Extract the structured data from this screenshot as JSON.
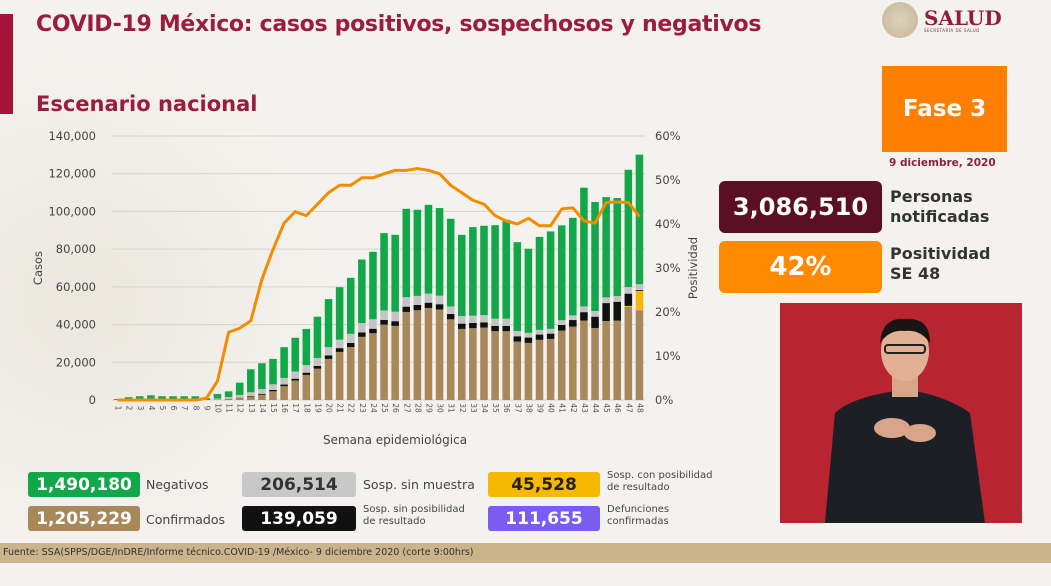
{
  "header": {
    "title": "COVID-19 México: casos positivos, sospechosos y negativos",
    "subtitle": "Escenario nacional",
    "logo_text": "SALUD",
    "logo_subtext": "SECRETARÍA DE SALUD"
  },
  "side": {
    "phase": "Fase 3",
    "date": "9 diciembre, 2020",
    "notified_value": "3,086,510",
    "notified_label_1": "Personas",
    "notified_label_2": "notificadas",
    "positivity_value": "42%",
    "positivity_label_1": "Positividad",
    "positivity_label_2": "SE 48"
  },
  "legend": [
    {
      "value": "1,490,180",
      "label": "Negativos",
      "color": "#12a84a"
    },
    {
      "value": "1,205,229",
      "label": "Confirmados",
      "color": "#a8875a"
    },
    {
      "value": "206,514",
      "label": "Sosp. sin muestra",
      "color": "#c8c8c8"
    },
    {
      "value": "139,059",
      "label_1": "Sosp. sin posibilidad",
      "label_2": "de resultado",
      "color": "#111111"
    },
    {
      "value": "45,528",
      "label_1": "Sosp. con posibilidad",
      "label_2": "de resultado",
      "color": "#f7b800"
    },
    {
      "value": "111,655",
      "label_1": "Defunciones",
      "label_2": "confirmadas",
      "color": "#7b5cf0"
    }
  ],
  "footer": "Fuente: SSA(SPPS/DGE/InDRE/Informe técnico.COVID-19 /México- 9 diciembre 2020 (corte 9:00hrs)",
  "chart_data": {
    "type": "bar",
    "stacked": true,
    "xlabel": "Semana epidemiológica",
    "ylabel": "Casos",
    "y2label": "Positividad",
    "ylim": [
      0,
      140000
    ],
    "y2lim": [
      0,
      60
    ],
    "yticks": [
      "0",
      "20,000",
      "40,000",
      "60,000",
      "80,000",
      "100,000",
      "120,000",
      "140,000"
    ],
    "y2ticks": [
      "0%",
      "10%",
      "20%",
      "30%",
      "40%",
      "50%",
      "60%"
    ],
    "grid": true,
    "categories": [
      1,
      2,
      3,
      4,
      5,
      6,
      7,
      8,
      9,
      10,
      11,
      12,
      13,
      14,
      15,
      16,
      17,
      18,
      19,
      20,
      21,
      22,
      23,
      24,
      25,
      26,
      27,
      28,
      29,
      30,
      31,
      32,
      33,
      34,
      35,
      36,
      37,
      38,
      39,
      40,
      41,
      42,
      43,
      44,
      45,
      46,
      47,
      48
    ],
    "series": [
      {
        "key": "confirmados",
        "color": "#a8875a",
        "values": [
          0,
          0,
          0,
          0,
          0,
          0,
          0,
          0,
          0,
          300,
          500,
          1000,
          1800,
          2800,
          4600,
          7300,
          10300,
          13300,
          16600,
          21800,
          25500,
          28100,
          33500,
          35400,
          40000,
          39300,
          46700,
          47600,
          48800,
          48000,
          42800,
          37700,
          38100,
          38400,
          36500,
          36500,
          31000,
          30300,
          31900,
          32400,
          36800,
          38900,
          42100,
          38200,
          41900,
          42100,
          49400,
          47600
        ]
      },
      {
        "key": "sosp_con_posibilidad",
        "color": "#f7b800",
        "values": [
          0,
          0,
          0,
          0,
          0,
          0,
          0,
          0,
          0,
          0,
          0,
          0,
          0,
          0,
          0,
          0,
          0,
          0,
          0,
          0,
          0,
          0,
          0,
          0,
          0,
          0,
          0,
          0,
          0,
          0,
          0,
          0,
          0,
          0,
          0,
          0,
          0,
          0,
          0,
          0,
          0,
          0,
          0,
          0,
          0,
          0,
          500,
          10300
        ]
      },
      {
        "key": "sosp_sin_posibilidad",
        "color": "#111111",
        "values": [
          0,
          0,
          0,
          0,
          0,
          0,
          0,
          0,
          0,
          0,
          100,
          200,
          300,
          500,
          700,
          900,
          1000,
          1200,
          1500,
          1800,
          2000,
          2200,
          2300,
          2400,
          2500,
          2500,
          2800,
          2800,
          2800,
          2800,
          2800,
          2800,
          2800,
          2800,
          2800,
          2800,
          2800,
          2800,
          2800,
          2800,
          3000,
          3500,
          4500,
          6000,
          9500,
          10000,
          6500,
          500
        ]
      },
      {
        "key": "sosp_sin_muestra",
        "color": "#c4c4c4",
        "values": [
          0,
          0,
          0,
          0,
          0,
          0,
          0,
          0,
          0,
          500,
          1000,
          1500,
          2000,
          2500,
          3000,
          3500,
          3800,
          4000,
          4200,
          4500,
          4500,
          4800,
          5000,
          5000,
          5000,
          5000,
          5000,
          4800,
          4800,
          4500,
          4000,
          4000,
          3800,
          3800,
          3800,
          3800,
          2800,
          2500,
          2500,
          2500,
          2500,
          2500,
          3000,
          3000,
          3000,
          3000,
          3500,
          3000
        ]
      },
      {
        "key": "negativos",
        "color": "#12a84a",
        "values": [
          500,
          1500,
          2000,
          2500,
          2000,
          2000,
          2000,
          2000,
          1000,
          2400,
          3000,
          6500,
          12200,
          13700,
          13500,
          16300,
          17900,
          19200,
          21900,
          25400,
          27800,
          29700,
          33700,
          35800,
          41000,
          40800,
          46900,
          45700,
          47100,
          46500,
          46500,
          43100,
          47000,
          47400,
          49600,
          52500,
          47100,
          44600,
          49300,
          51700,
          50300,
          51700,
          63000,
          57800,
          53200,
          52000,
          62200,
          68700
        ]
      }
    ],
    "line": {
      "key": "positividad",
      "color": "#f28c00",
      "axis": "right",
      "values": [
        0,
        0,
        0,
        0,
        0,
        0,
        0,
        0,
        0.4,
        4.3,
        15.4,
        16.3,
        18,
        27.4,
        34.2,
        40.2,
        42.8,
        41.9,
        44.5,
        47.1,
        48.8,
        48.8,
        50.5,
        50.5,
        51.4,
        52.2,
        52.2,
        52.6,
        52.2,
        51.4,
        48.8,
        47.1,
        45.4,
        44.5,
        41.9,
        40.7,
        40,
        41.3,
        39.6,
        39.6,
        43.4,
        43.7,
        40.7,
        40.2,
        44.9,
        45,
        44.9,
        41.7
      ]
    }
  }
}
